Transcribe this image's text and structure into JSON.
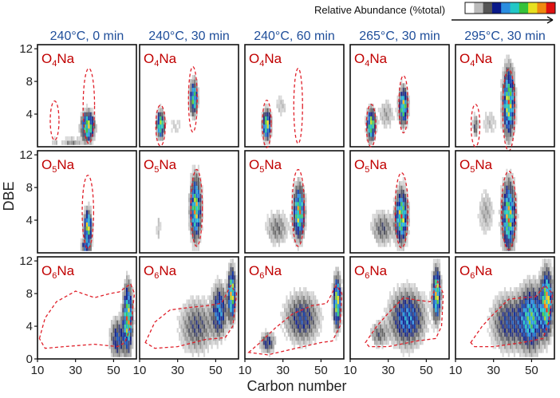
{
  "chart_data": {
    "type": "heatmap",
    "legend": {
      "title": "Relative Abundance (%total)",
      "colors": [
        "#ffffff",
        "#bbbbbb",
        "#555555",
        "#0a1a8a",
        "#2a8de0",
        "#22c7c7",
        "#35c23a",
        "#e7e020",
        "#f08a10",
        "#e01010"
      ]
    },
    "xlabel": "Carbon number",
    "ylabel": "DBE",
    "xlim": [
      10,
      62
    ],
    "ylim": [
      0,
      12.5
    ],
    "xticks": [
      "10",
      "30",
      "50"
    ],
    "yticks": [
      "0",
      "4",
      "8",
      "12"
    ],
    "column_titles": [
      "240°C, 0 min",
      "240°C, 30 min",
      "240°C, 60 min",
      "265°C, 30 min",
      "295°C, 30 min"
    ],
    "row_classes": [
      {
        "label": "O",
        "subscript": "4",
        "suffix": "Na"
      },
      {
        "label": "O",
        "subscript": "5",
        "suffix": "Na"
      },
      {
        "label": "O",
        "subscript": "6",
        "suffix": "Na"
      }
    ],
    "panels": [
      [
        {
          "ellipses": [
            [
              19,
              3.2,
              2.3,
              2.4
            ],
            [
              37,
              5.0,
              3.0,
              4.6
            ]
          ],
          "clusters": [
            {
              "cx": 36.5,
              "cy": 2.5,
              "sx": 2.2,
              "sy": 1.1,
              "peak": 1.0
            },
            {
              "cx": 28,
              "cy": 0.5,
              "sx": 3.5,
              "sy": 0.4,
              "peak": 0.25
            },
            {
              "cx": 19,
              "cy": 0.5,
              "sx": 1.5,
              "sy": 0.4,
              "peak": 0.15
            }
          ]
        },
        {
          "ellipses": [
            [
              21,
              2.6,
              2.5,
              2.5
            ],
            [
              38,
              5.8,
              2.3,
              4.0
            ]
          ],
          "clusters": [
            {
              "cx": 21,
              "cy": 2.7,
              "sx": 1.3,
              "sy": 1.0,
              "peak": 1.0
            },
            {
              "cx": 38.5,
              "cy": 6.0,
              "sx": 1.3,
              "sy": 1.3,
              "peak": 0.9
            },
            {
              "cx": 29,
              "cy": 2.5,
              "sx": 3.0,
              "sy": 1.0,
              "peak": 0.12
            }
          ]
        },
        {
          "ellipses": [
            [
              21.5,
              2.8,
              2.3,
              2.9
            ],
            [
              38,
              5.0,
              2.3,
              4.6
            ]
          ],
          "clusters": [
            {
              "cx": 21.5,
              "cy": 2.7,
              "sx": 1.4,
              "sy": 1.1,
              "peak": 1.0
            },
            {
              "cx": 29,
              "cy": 5.0,
              "sx": 2.5,
              "sy": 1.0,
              "peak": 0.15
            }
          ]
        },
        {
          "ellipses": [
            [
              21,
              2.6,
              2.5,
              2.6
            ],
            [
              38,
              5.2,
              2.4,
              3.5
            ]
          ],
          "clusters": [
            {
              "cx": 21,
              "cy": 2.7,
              "sx": 1.4,
              "sy": 1.2,
              "peak": 1.0
            },
            {
              "cx": 38,
              "cy": 5.0,
              "sx": 1.5,
              "sy": 1.4,
              "peak": 0.95
            },
            {
              "cx": 29,
              "cy": 4.0,
              "sx": 3.0,
              "sy": 1.3,
              "peak": 0.2
            }
          ]
        },
        {
          "ellipses": [
            [
              20.5,
              2.6,
              2.3,
              2.6
            ],
            [
              38,
              4.5,
              3.2,
              5.0
            ]
          ],
          "clusters": [
            {
              "cx": 38,
              "cy": 5.5,
              "sx": 2.0,
              "sy": 2.6,
              "peak": 1.0
            },
            {
              "cx": 20.5,
              "cy": 2.5,
              "sx": 1.0,
              "sy": 0.9,
              "peak": 0.35
            },
            {
              "cx": 28,
              "cy": 3.0,
              "sx": 3.0,
              "sy": 1.2,
              "peak": 0.15
            }
          ]
        }
      ],
      [
        {
          "ellipses": [
            [
              36.5,
              5.0,
              3.0,
              4.5
            ]
          ],
          "clusters": [
            {
              "cx": 36.5,
              "cy": 3.2,
              "sx": 1.3,
              "sy": 1.3,
              "peak": 1.0
            },
            {
              "cx": 35.5,
              "cy": 0.8,
              "sx": 1.8,
              "sy": 0.5,
              "peak": 0.5
            }
          ]
        },
        {
          "ellipses": [
            [
              40,
              5.5,
              3.0,
              4.7
            ]
          ],
          "clusters": [
            {
              "cx": 39.5,
              "cy": 5.5,
              "sx": 1.8,
              "sy": 2.4,
              "peak": 1.0
            },
            {
              "cx": 20,
              "cy": 3.0,
              "sx": 1.0,
              "sy": 1.5,
              "peak": 0.15
            }
          ]
        },
        {
          "ellipses": [
            [
              38,
              5.5,
              3.2,
              4.7
            ]
          ],
          "clusters": [
            {
              "cx": 38.5,
              "cy": 5.0,
              "sx": 1.9,
              "sy": 2.0,
              "peak": 1.0
            },
            {
              "cx": 27,
              "cy": 3.0,
              "sx": 4.0,
              "sy": 1.4,
              "peak": 0.28
            }
          ]
        },
        {
          "ellipses": [
            [
              37,
              5.2,
              3.4,
              4.6
            ]
          ],
          "clusters": [
            {
              "cx": 37,
              "cy": 4.5,
              "sx": 2.0,
              "sy": 2.0,
              "peak": 1.0
            },
            {
              "cx": 27,
              "cy": 3.0,
              "sx": 4.0,
              "sy": 1.4,
              "peak": 0.32
            }
          ]
        },
        {
          "ellipses": [
            [
              38,
              5.2,
              3.8,
              4.8
            ]
          ],
          "clusters": [
            {
              "cx": 38,
              "cy": 4.5,
              "sx": 2.2,
              "sy": 2.6,
              "peak": 1.0
            },
            {
              "cx": 26,
              "cy": 5.0,
              "sx": 3.0,
              "sy": 2.0,
              "peak": 0.2
            }
          ]
        }
      ],
      [
        {
          "envelope": [
            [
              11,
              2.5
            ],
            [
              14,
              5.0
            ],
            [
              20,
              7.0
            ],
            [
              30,
              8.3
            ],
            [
              40,
              7.5
            ],
            [
              48,
              8.0
            ],
            [
              53,
              8.2
            ],
            [
              59,
              9.2
            ],
            [
              61,
              8.0
            ],
            [
              59,
              4.0
            ],
            [
              56,
              2.0
            ],
            [
              52,
              1.5
            ],
            [
              40,
              1.8
            ],
            [
              24,
              1.5
            ],
            [
              14,
              1.3
            ]
          ],
          "clusters": [
            {
              "cx": 57.5,
              "cy": 5.0,
              "sx": 1.6,
              "sy": 2.6,
              "peak": 1.0
            },
            {
              "cx": 52,
              "cy": 2.5,
              "sx": 2.5,
              "sy": 1.6,
              "peak": 0.5
            }
          ]
        },
        {
          "envelope": [
            [
              13,
              2.0
            ],
            [
              18,
              4.5
            ],
            [
              26,
              6.0
            ],
            [
              36,
              6.3
            ],
            [
              45,
              6.5
            ],
            [
              53,
              6.8
            ],
            [
              58,
              9.0
            ],
            [
              61,
              8.0
            ],
            [
              59,
              4.0
            ],
            [
              55,
              2.6
            ],
            [
              45,
              2.4
            ],
            [
              30,
              1.5
            ],
            [
              18,
              1.3
            ]
          ],
          "clusters": [
            {
              "cx": 58.5,
              "cy": 8.0,
              "sx": 1.3,
              "sy": 2.0,
              "peak": 1.0
            },
            {
              "cx": 40,
              "cy": 4.0,
              "sx": 6.0,
              "sy": 2.2,
              "peak": 0.35
            },
            {
              "cx": 52,
              "cy": 6.0,
              "sx": 2.5,
              "sy": 2.0,
              "peak": 0.6
            }
          ]
        },
        {
          "envelope": [
            [
              12,
              0.8
            ],
            [
              18,
              2.0
            ],
            [
              26,
              3.8
            ],
            [
              35,
              5.5
            ],
            [
              45,
              6.5
            ],
            [
              53,
              6.8
            ],
            [
              58,
              9.0
            ],
            [
              61,
              8.0
            ],
            [
              60,
              4.0
            ],
            [
              56,
              2.2
            ],
            [
              50,
              2.0
            ],
            [
              35,
              1.2
            ],
            [
              22,
              0.5
            ]
          ],
          "clusters": [
            {
              "cx": 58.5,
              "cy": 7.0,
              "sx": 1.3,
              "sy": 2.0,
              "peak": 1.0
            },
            {
              "cx": 40,
              "cy": 5.0,
              "sx": 6.0,
              "sy": 2.0,
              "peak": 0.45
            },
            {
              "cx": 22,
              "cy": 2.0,
              "sx": 2.5,
              "sy": 0.8,
              "peak": 0.45
            }
          ]
        },
        {
          "envelope": [
            [
              18,
              2.0
            ],
            [
              24,
              4.0
            ],
            [
              30,
              5.6
            ],
            [
              38,
              7.5
            ],
            [
              45,
              7.2
            ],
            [
              52,
              7.0
            ],
            [
              56,
              9.5
            ],
            [
              59,
              8.0
            ],
            [
              58,
              4.0
            ],
            [
              55,
              2.5
            ],
            [
              45,
              2.2
            ],
            [
              30,
              1.5
            ],
            [
              20,
              1.5
            ]
          ],
          "clusters": [
            {
              "cx": 55.5,
              "cy": 8.0,
              "sx": 1.4,
              "sy": 2.0,
              "peak": 1.0
            },
            {
              "cx": 40,
              "cy": 5.0,
              "sx": 6.0,
              "sy": 2.2,
              "peak": 0.6
            },
            {
              "cx": 25,
              "cy": 3.0,
              "sx": 3.0,
              "sy": 1.0,
              "peak": 0.3
            }
          ]
        },
        {
          "envelope": [
            [
              18,
              2.0
            ],
            [
              24,
              4.0
            ],
            [
              30,
              5.5
            ],
            [
              38,
              7.3
            ],
            [
              45,
              7.5
            ],
            [
              52,
              7.6
            ],
            [
              57,
              9.0
            ],
            [
              61,
              8.0
            ],
            [
              59,
              4.5
            ],
            [
              56,
              2.5
            ],
            [
              45,
              2.0
            ],
            [
              30,
              1.5
            ],
            [
              20,
              1.5
            ]
          ],
          "clusters": [
            {
              "cx": 58,
              "cy": 7.0,
              "sx": 2.0,
              "sy": 2.5,
              "peak": 1.0
            },
            {
              "cx": 50,
              "cy": 5.0,
              "sx": 4.0,
              "sy": 2.5,
              "peak": 0.75
            },
            {
              "cx": 38,
              "cy": 4.5,
              "sx": 6.0,
              "sy": 2.2,
              "peak": 0.45
            }
          ]
        }
      ]
    ]
  }
}
